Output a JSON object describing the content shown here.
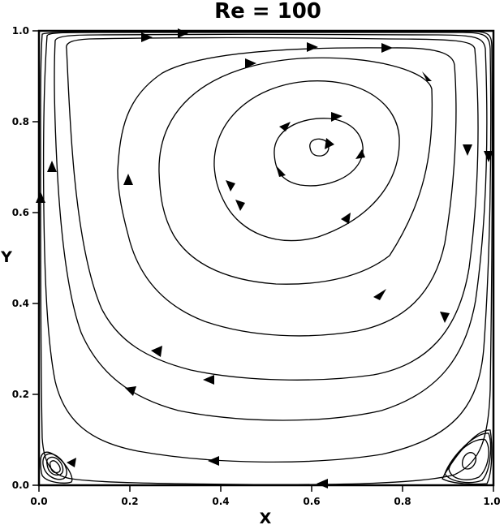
{
  "title": "Re = 100",
  "xlabel": "X",
  "ylabel": "Y",
  "x_ticks": [
    "0.0",
    "0.2",
    "0.4",
    "0.6",
    "0.8",
    "1.0"
  ],
  "y_ticks": [
    "0.0",
    "0.2",
    "0.4",
    "0.6",
    "0.8",
    "1.0"
  ],
  "colors": {
    "streamline": "#000000",
    "background": "#ffffff"
  }
}
